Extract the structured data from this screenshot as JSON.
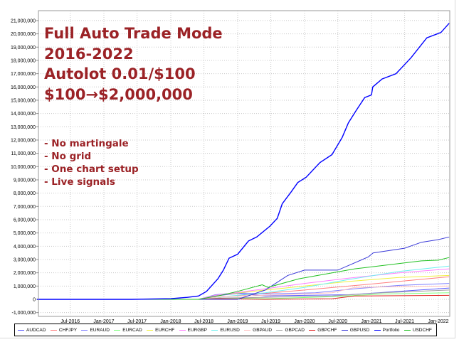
{
  "overlay": {
    "title_lines": [
      "Full Auto Trade Mode",
      "2016-2022",
      "Autolot 0.01/$100",
      "$100→$2,000,000"
    ],
    "bullets": [
      "- No martingale",
      "- No grid",
      "- One chart setup",
      "- Live signals"
    ],
    "color": "#9b2226"
  },
  "chart_data": {
    "type": "line",
    "title": "",
    "xlabel": "",
    "ylabel": "",
    "ylim": [
      -1000000,
      21500000
    ],
    "xlim": [
      "2016-01-01",
      "2022-03-01"
    ],
    "grid": true,
    "legend_position": "bottom",
    "y_ticks": [
      "-1,000,000",
      "0",
      "1,000,000",
      "2,000,000",
      "3,000,000",
      "4,000,000",
      "5,000,000",
      "6,000,000",
      "7,000,000",
      "8,000,000",
      "9,000,000",
      "10,000,000",
      "11,000,000",
      "12,000,000",
      "13,000,000",
      "14,000,000",
      "15,000,000",
      "16,000,000",
      "17,000,000",
      "18,000,000",
      "19,000,000",
      "20,000,000",
      "21,000,000"
    ],
    "y_tick_values": [
      -1000000,
      0,
      1000000,
      2000000,
      3000000,
      4000000,
      5000000,
      6000000,
      7000000,
      8000000,
      9000000,
      10000000,
      11000000,
      12000000,
      13000000,
      14000000,
      15000000,
      16000000,
      17000000,
      18000000,
      19000000,
      20000000,
      21000000
    ],
    "x_ticks": [
      "Jul-2016",
      "Jan-2017",
      "Jul-2017",
      "Jan-2018",
      "Jul-2018",
      "Jan-2019",
      "Jul-2019",
      "Jan-2020",
      "Jul-2020",
      "Jan-2021",
      "Jul-2021",
      "Jan-2022"
    ],
    "x_tick_dates": [
      "2016-07-01",
      "2017-01-01",
      "2017-07-01",
      "2018-01-01",
      "2018-07-01",
      "2019-01-01",
      "2019-07-01",
      "2020-01-01",
      "2020-07-01",
      "2021-01-01",
      "2021-07-01",
      "2022-01-01"
    ],
    "series": [
      {
        "name": "AUDCAD",
        "color": "#5a5aff",
        "points": [
          [
            "2016-01-01",
            0
          ],
          [
            "2018-06-01",
            0
          ],
          [
            "2018-09-01",
            250000
          ],
          [
            "2019-01-01",
            450000
          ],
          [
            "2019-06-01",
            250000
          ],
          [
            "2020-01-01",
            300000
          ],
          [
            "2020-09-01",
            350000
          ],
          [
            "2021-06-01",
            600000
          ],
          [
            "2022-03-01",
            850000
          ]
        ]
      },
      {
        "name": "CHFJPY",
        "color": "#ff7f7f",
        "points": [
          [
            "2016-01-01",
            0
          ],
          [
            "2018-06-01",
            0
          ],
          [
            "2018-09-01",
            150000
          ],
          [
            "2019-06-01",
            450000
          ],
          [
            "2020-01-01",
            700000
          ],
          [
            "2020-09-01",
            1000000
          ],
          [
            "2021-06-01",
            1350000
          ],
          [
            "2022-03-01",
            1700000
          ]
        ]
      },
      {
        "name": "EURAUD",
        "color": "#8080ff",
        "points": [
          [
            "2016-01-01",
            0
          ],
          [
            "2018-06-01",
            0
          ],
          [
            "2018-09-01",
            350000
          ],
          [
            "2019-01-01",
            500000
          ],
          [
            "2019-06-01",
            400000
          ],
          [
            "2020-03-01",
            500000
          ],
          [
            "2020-10-01",
            800000
          ],
          [
            "2021-06-01",
            1050000
          ],
          [
            "2022-03-01",
            1200000
          ]
        ]
      },
      {
        "name": "EURCAD",
        "color": "#80ff80",
        "points": [
          [
            "2016-01-01",
            0
          ],
          [
            "2018-06-01",
            0
          ],
          [
            "2018-10-01",
            100000
          ],
          [
            "2019-06-01",
            50000
          ],
          [
            "2020-06-01",
            200000
          ],
          [
            "2021-03-01",
            400000
          ],
          [
            "2022-03-01",
            500000
          ]
        ]
      },
      {
        "name": "EURCHF",
        "color": "#f0f040",
        "points": [
          [
            "2016-01-01",
            0
          ],
          [
            "2018-06-01",
            0
          ],
          [
            "2018-09-01",
            300000
          ],
          [
            "2019-06-01",
            700000
          ],
          [
            "2020-01-01",
            1000000
          ],
          [
            "2020-09-01",
            1350000
          ],
          [
            "2021-06-01",
            1650000
          ],
          [
            "2022-03-01",
            1800000
          ]
        ]
      },
      {
        "name": "EURGBP",
        "color": "#ff80ff",
        "points": [
          [
            "2016-01-01",
            0
          ],
          [
            "2018-06-01",
            0
          ],
          [
            "2018-09-01",
            300000
          ],
          [
            "2019-06-01",
            800000
          ],
          [
            "2020-01-01",
            1200000
          ],
          [
            "2020-09-01",
            1600000
          ],
          [
            "2021-06-01",
            2000000
          ],
          [
            "2022-03-01",
            2300000
          ]
        ]
      },
      {
        "name": "EURUSD",
        "color": "#70f0f0",
        "points": [
          [
            "2016-01-01",
            0
          ],
          [
            "2018-06-01",
            0
          ],
          [
            "2018-09-01",
            150000
          ],
          [
            "2019-06-01",
            500000
          ],
          [
            "2020-01-01",
            900000
          ],
          [
            "2020-09-01",
            1500000
          ],
          [
            "2021-06-01",
            2100000
          ],
          [
            "2022-03-01",
            2500000
          ]
        ]
      },
      {
        "name": "GBPAUD",
        "color": "#ffc0c0",
        "points": [
          [
            "2016-01-01",
            0
          ],
          [
            "2018-06-01",
            0
          ],
          [
            "2018-10-01",
            200000
          ],
          [
            "2019-06-01",
            300000
          ],
          [
            "2020-06-01",
            500000
          ],
          [
            "2020-10-01",
            900000
          ],
          [
            "2021-06-01",
            950000
          ],
          [
            "2022-03-01",
            1000000
          ]
        ]
      },
      {
        "name": "GBPCAD",
        "color": "#a0a0a0",
        "points": [
          [
            "2016-01-01",
            0
          ],
          [
            "2018-06-01",
            0
          ],
          [
            "2018-10-01",
            100000
          ],
          [
            "2019-06-01",
            150000
          ],
          [
            "2020-06-01",
            250000
          ],
          [
            "2021-03-01",
            500000
          ],
          [
            "2022-03-01",
            700000
          ]
        ]
      },
      {
        "name": "GBPCHF",
        "color": "#e02020",
        "points": [
          [
            "2016-01-01",
            0
          ],
          [
            "2018-06-01",
            0
          ],
          [
            "2018-10-01",
            50000
          ],
          [
            "2019-06-01",
            0
          ],
          [
            "2020-06-01",
            50000
          ],
          [
            "2020-10-01",
            250000
          ],
          [
            "2022-03-01",
            300000
          ]
        ]
      },
      {
        "name": "GBPUSD",
        "color": "#3a3ad8",
        "points": [
          [
            "2016-01-01",
            0
          ],
          [
            "2018-06-01",
            0
          ],
          [
            "2019-01-01",
            0
          ],
          [
            "2019-06-01",
            700000
          ],
          [
            "2019-10-01",
            1800000
          ],
          [
            "2020-01-01",
            2200000
          ],
          [
            "2020-07-01",
            2200000
          ],
          [
            "2020-12-15",
            3200000
          ],
          [
            "2021-01-10",
            3500000
          ],
          [
            "2021-07-01",
            3850000
          ],
          [
            "2021-10-01",
            4300000
          ],
          [
            "2022-01-01",
            4500000
          ],
          [
            "2022-03-01",
            4700000
          ]
        ]
      },
      {
        "name": "Portfolio",
        "color": "#0000ff",
        "points": [
          [
            "2016-01-01",
            0
          ],
          [
            "2017-06-01",
            0
          ],
          [
            "2018-01-01",
            50000
          ],
          [
            "2018-04-01",
            150000
          ],
          [
            "2018-06-01",
            250000
          ],
          [
            "2018-07-15",
            600000
          ],
          [
            "2018-09-15",
            1550000
          ],
          [
            "2018-10-15",
            2200000
          ],
          [
            "2018-11-15",
            3100000
          ],
          [
            "2019-01-01",
            3400000
          ],
          [
            "2019-03-01",
            4400000
          ],
          [
            "2019-04-15",
            4700000
          ],
          [
            "2019-06-25",
            5500000
          ],
          [
            "2019-08-05",
            6100000
          ],
          [
            "2019-09-01",
            7200000
          ],
          [
            "2019-10-20",
            8100000
          ],
          [
            "2019-11-25",
            8800000
          ],
          [
            "2020-01-10",
            9200000
          ],
          [
            "2020-03-25",
            10300000
          ],
          [
            "2020-05-30",
            10900000
          ],
          [
            "2020-07-25",
            12200000
          ],
          [
            "2020-08-28",
            13300000
          ],
          [
            "2020-10-08",
            14200000
          ],
          [
            "2020-11-25",
            15200000
          ],
          [
            "2021-01-01",
            15400000
          ],
          [
            "2021-01-08",
            16000000
          ],
          [
            "2021-02-28",
            16600000
          ],
          [
            "2021-05-15",
            17000000
          ],
          [
            "2021-08-05",
            18200000
          ],
          [
            "2021-10-30",
            19700000
          ],
          [
            "2022-01-15",
            20100000
          ],
          [
            "2022-03-01",
            20800000
          ]
        ]
      },
      {
        "name": "USDCHF",
        "color": "#20c020",
        "points": [
          [
            "2016-01-01",
            0
          ],
          [
            "2018-06-01",
            0
          ],
          [
            "2018-10-01",
            300000
          ],
          [
            "2019-01-01",
            600000
          ],
          [
            "2019-05-15",
            1100000
          ],
          [
            "2019-06-15",
            900000
          ],
          [
            "2019-12-01",
            1550000
          ],
          [
            "2020-10-01",
            2300000
          ],
          [
            "2021-10-01",
            2900000
          ],
          [
            "2022-01-01",
            2950000
          ],
          [
            "2022-03-01",
            3150000
          ]
        ]
      }
    ]
  }
}
